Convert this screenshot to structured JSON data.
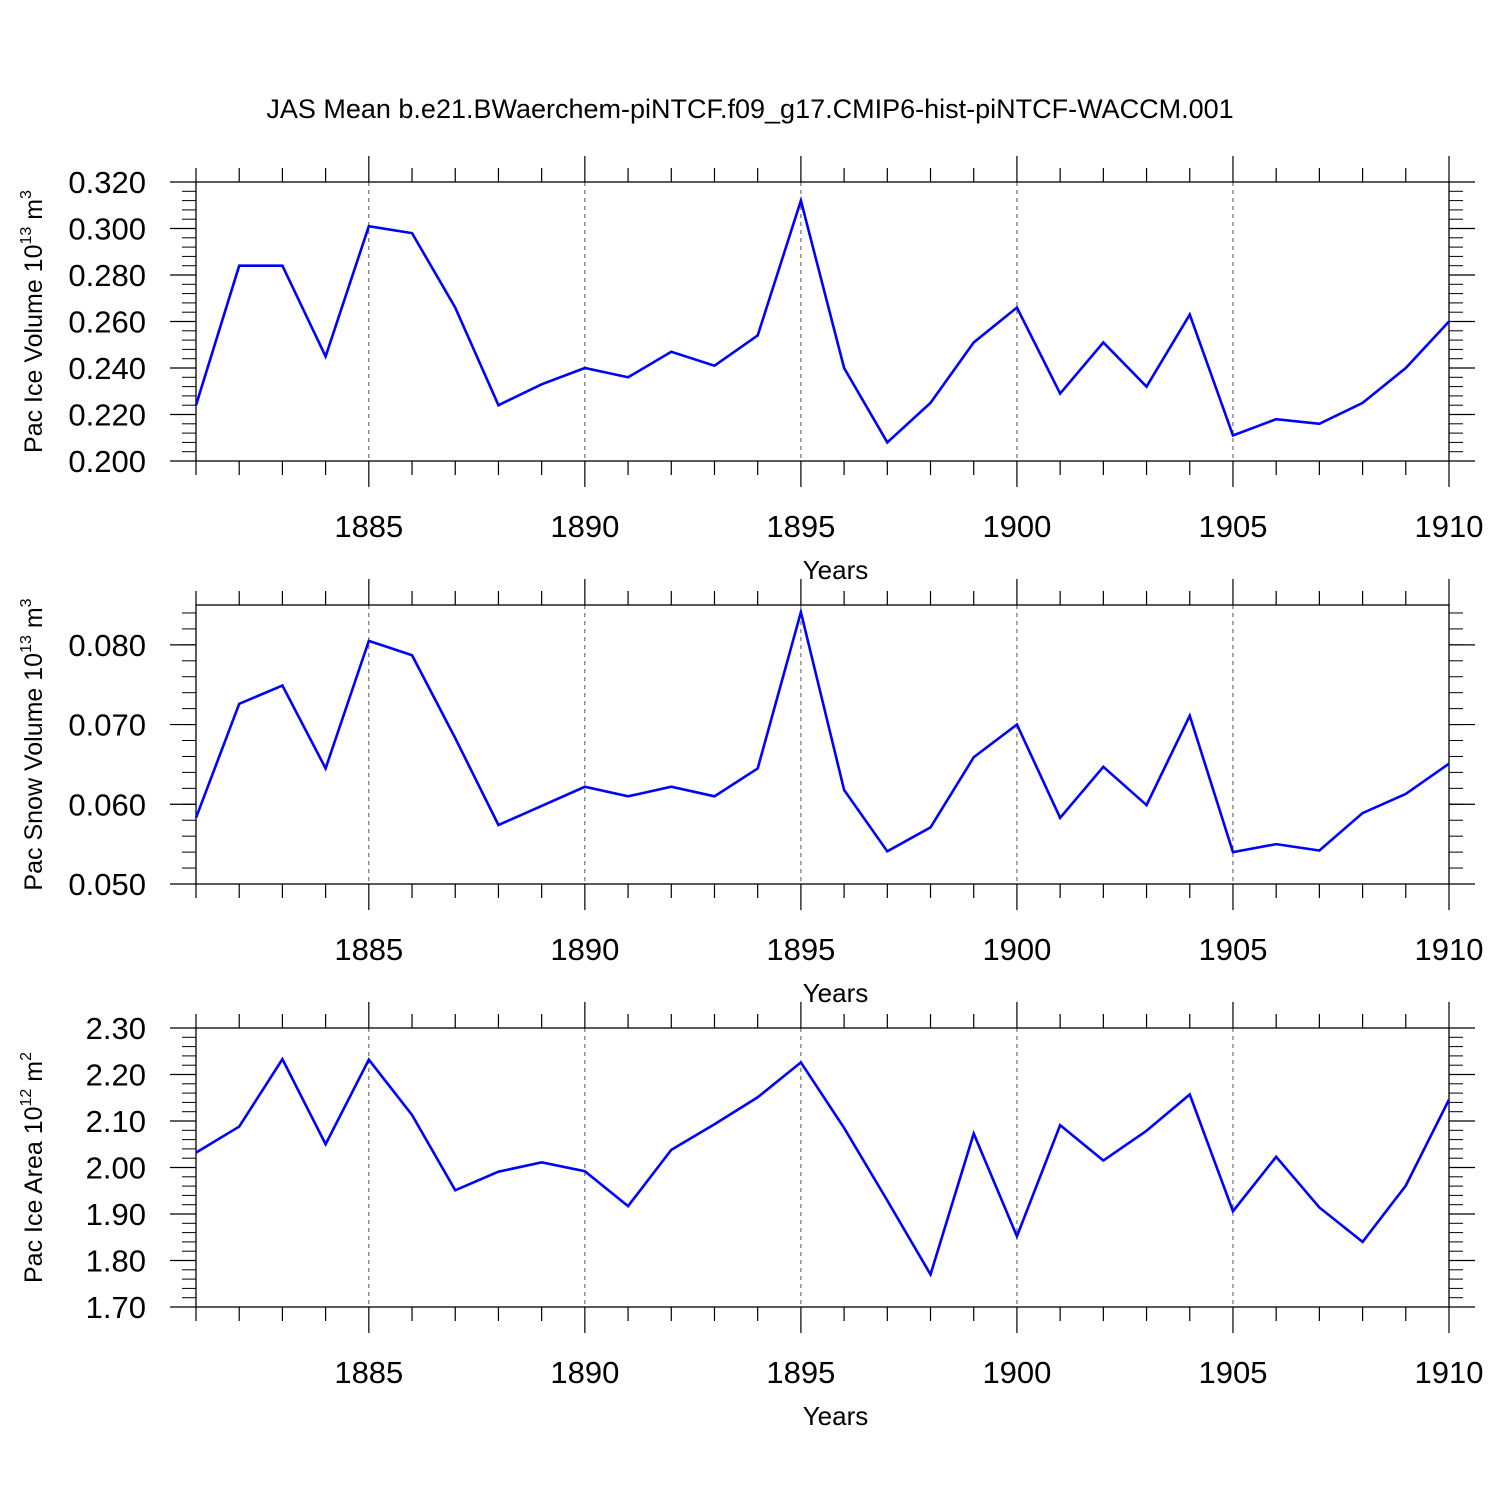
{
  "figure": {
    "title": "JAS Mean b.e21.BWaerchem-piNTCF.f09_g17.CMIP6-hist-piNTCF-WACCM.001",
    "line_color": "#0000ff",
    "axis_color": "#000000",
    "grid_color": "#555555"
  },
  "chart_data": [
    {
      "type": "line",
      "x": [
        1881,
        1882,
        1883,
        1884,
        1885,
        1886,
        1887,
        1888,
        1889,
        1890,
        1891,
        1892,
        1893,
        1894,
        1895,
        1896,
        1897,
        1898,
        1899,
        1900,
        1901,
        1902,
        1903,
        1904,
        1905,
        1906,
        1907,
        1908,
        1909,
        1910
      ],
      "series": [
        {
          "values": [
            0.224,
            0.284,
            0.284,
            0.245,
            0.301,
            0.298,
            0.266,
            0.224,
            0.233,
            0.24,
            0.236,
            0.247,
            0.241,
            0.254,
            0.312,
            0.24,
            0.208,
            0.225,
            0.251,
            0.266,
            0.229,
            0.251,
            0.232,
            0.263,
            0.211,
            0.218,
            0.216,
            0.225,
            0.24,
            0.26
          ]
        }
      ],
      "xlabel": "Years",
      "ylabel": {
        "main": "Pac Ice Volume 10",
        "exp": "13",
        "unit": " m",
        "unit_exp": "3"
      },
      "xlim": [
        1881,
        1910
      ],
      "ylim": [
        0.2,
        0.32
      ],
      "xticks": [
        1885,
        1890,
        1895,
        1900,
        1905,
        1910
      ],
      "yticks": [
        0.2,
        0.22,
        0.24,
        0.26,
        0.28,
        0.3,
        0.32
      ],
      "ytick_labels": [
        "0.200",
        "0.220",
        "0.240",
        "0.260",
        "0.280",
        "0.300",
        "0.320"
      ],
      "grid": "dashed vertical at major x ticks"
    },
    {
      "type": "line",
      "x": [
        1881,
        1882,
        1883,
        1884,
        1885,
        1886,
        1887,
        1888,
        1889,
        1890,
        1891,
        1892,
        1893,
        1894,
        1895,
        1896,
        1897,
        1898,
        1899,
        1900,
        1901,
        1902,
        1903,
        1904,
        1905,
        1906,
        1907,
        1908,
        1909,
        1910
      ],
      "series": [
        {
          "values": [
            0.0583,
            0.0726,
            0.0749,
            0.0645,
            0.0805,
            0.0787,
            0.0683,
            0.0574,
            0.0598,
            0.0622,
            0.061,
            0.0622,
            0.061,
            0.0645,
            0.0841,
            0.0618,
            0.0541,
            0.0571,
            0.0659,
            0.07,
            0.0583,
            0.0647,
            0.0599,
            0.0711,
            0.054,
            0.055,
            0.0542,
            0.0589,
            0.0613,
            0.0651
          ]
        }
      ],
      "xlabel": "Years",
      "ylabel": {
        "main": "Pac Snow Volume 10",
        "exp": "13",
        "unit": " m",
        "unit_exp": "3"
      },
      "xlim": [
        1881,
        1910
      ],
      "ylim": [
        0.05,
        0.085
      ],
      "xticks": [
        1885,
        1890,
        1895,
        1900,
        1905,
        1910
      ],
      "yticks": [
        0.05,
        0.06,
        0.07,
        0.08
      ],
      "ytick_labels": [
        "0.050",
        "0.060",
        "0.070",
        "0.080"
      ],
      "grid": "dashed vertical at major x ticks"
    },
    {
      "type": "line",
      "x": [
        1881,
        1882,
        1883,
        1884,
        1885,
        1886,
        1887,
        1888,
        1889,
        1890,
        1891,
        1892,
        1893,
        1894,
        1895,
        1896,
        1897,
        1898,
        1899,
        1900,
        1901,
        1902,
        1903,
        1904,
        1905,
        1906,
        1907,
        1908,
        1909,
        1910
      ],
      "series": [
        {
          "values": [
            2.032,
            2.088,
            2.233,
            2.05,
            2.232,
            2.113,
            1.951,
            1.991,
            2.011,
            1.992,
            1.917,
            2.038,
            2.093,
            2.151,
            2.226,
            2.085,
            1.929,
            1.77,
            2.073,
            1.852,
            2.091,
            2.015,
            2.079,
            2.157,
            1.906,
            2.023,
            1.914,
            1.84,
            1.961,
            2.146
          ]
        }
      ],
      "xlabel": "Years",
      "ylabel": {
        "main": "Pac Ice Area 10",
        "exp": "12",
        "unit": " m",
        "unit_exp": "2"
      },
      "xlim": [
        1881,
        1910
      ],
      "ylim": [
        1.7,
        2.3
      ],
      "xticks": [
        1885,
        1890,
        1895,
        1900,
        1905,
        1910
      ],
      "yticks": [
        1.7,
        1.8,
        1.9,
        2.0,
        2.1,
        2.2,
        2.3
      ],
      "ytick_labels": [
        "1.70",
        "1.80",
        "1.90",
        "2.00",
        "2.10",
        "2.20",
        "2.30"
      ],
      "grid": "dashed vertical at major x ticks"
    }
  ]
}
